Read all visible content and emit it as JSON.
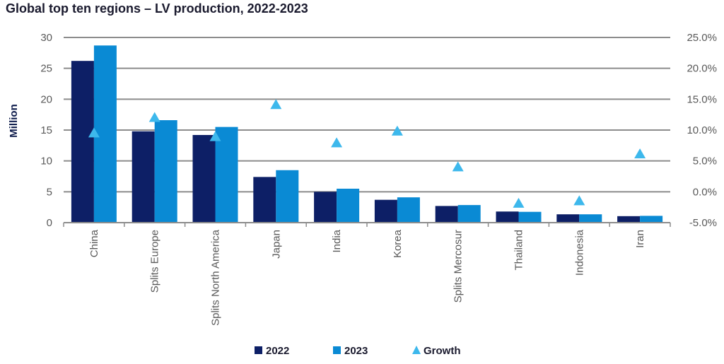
{
  "chart_data": {
    "type": "bar",
    "title": "Global top ten regions – LV production, 2022-2023",
    "ylabel": "Million",
    "categories": [
      "China",
      "Splits Europe",
      "Splits North America",
      "Japan",
      "India",
      "Korea",
      "Splits Mercosur",
      "Thailand",
      "Indonesia",
      "Iran"
    ],
    "series": [
      {
        "name": "2022",
        "kind": "bar",
        "axis": "left",
        "color": "#0d1f66",
        "values": [
          26.2,
          14.8,
          14.2,
          7.4,
          5.0,
          3.7,
          2.7,
          1.8,
          1.35,
          1.05
        ]
      },
      {
        "name": "2023",
        "kind": "bar",
        "axis": "left",
        "color": "#0a8ad4",
        "values": [
          28.7,
          16.6,
          15.5,
          8.5,
          5.5,
          4.1,
          2.85,
          1.75,
          1.35,
          1.1
        ]
      },
      {
        "name": "Growth",
        "kind": "marker",
        "marker": "triangle",
        "axis": "right",
        "color": "#3db8ec",
        "values": [
          9.5,
          12.0,
          8.9,
          14.1,
          7.9,
          9.8,
          4.0,
          -1.9,
          -1.5,
          6.1
        ]
      }
    ],
    "ylim": [
      0,
      30
    ],
    "y_ticks": [
      "0",
      "5",
      "10",
      "15",
      "20",
      "25",
      "30"
    ],
    "y2lim": [
      -5,
      25
    ],
    "y2_ticks": [
      "-5.0%",
      "0.0%",
      "5.0%",
      "10.0%",
      "15.0%",
      "20.0%",
      "25.0%"
    ],
    "grid": true,
    "legend_position": "bottom"
  }
}
